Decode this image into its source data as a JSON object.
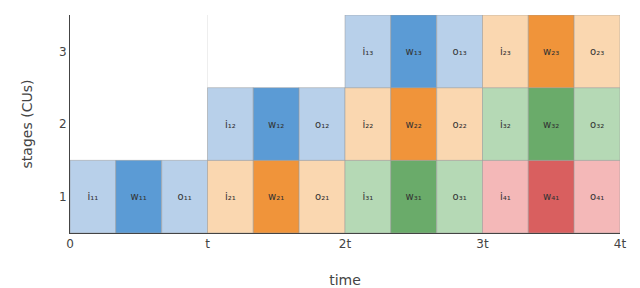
{
  "chart_data": {
    "type": "timeline",
    "orientation": "horizontal",
    "xlabel": "time",
    "ylabel": "stages (CUs)",
    "xlim": [
      0,
      4
    ],
    "xticks": [
      0,
      {
        "value": 1,
        "label": "t"
      },
      {
        "value": 2,
        "label": "2t"
      },
      {
        "value": 3,
        "label": "3t"
      },
      {
        "value": 4,
        "label": "4t"
      }
    ],
    "ylim": [
      0.5,
      3.5
    ],
    "yticks": [
      1,
      2,
      3
    ],
    "grid": true,
    "bars": [
      {
        "stage": 1,
        "start": 0.0,
        "duration": 0.333,
        "label": "i₁₁",
        "color": "#b8d0ea"
      },
      {
        "stage": 1,
        "start": 0.333,
        "duration": 0.333,
        "label": "w₁₁",
        "color": "#5b9bd5"
      },
      {
        "stage": 1,
        "start": 0.667,
        "duration": 0.333,
        "label": "o₁₁",
        "color": "#b8d0ea"
      },
      {
        "stage": 1,
        "start": 1.0,
        "duration": 0.333,
        "label": "i₂₁",
        "color": "#fad7b0"
      },
      {
        "stage": 1,
        "start": 1.333,
        "duration": 0.333,
        "label": "w₂₁",
        "color": "#f0943a"
      },
      {
        "stage": 1,
        "start": 1.667,
        "duration": 0.333,
        "label": "o₂₁",
        "color": "#fad7b0"
      },
      {
        "stage": 1,
        "start": 2.0,
        "duration": 0.333,
        "label": "i₃₁",
        "color": "#b5d9b5"
      },
      {
        "stage": 1,
        "start": 2.333,
        "duration": 0.333,
        "label": "w₃₁",
        "color": "#6aab6a"
      },
      {
        "stage": 1,
        "start": 2.667,
        "duration": 0.333,
        "label": "o₃₁",
        "color": "#b5d9b5"
      },
      {
        "stage": 1,
        "start": 3.0,
        "duration": 0.333,
        "label": "i₄₁",
        "color": "#f4b8b8"
      },
      {
        "stage": 1,
        "start": 3.333,
        "duration": 0.333,
        "label": "w₄₁",
        "color": "#d95f5f"
      },
      {
        "stage": 1,
        "start": 3.667,
        "duration": 0.333,
        "label": "o₄₁",
        "color": "#f4b8b8"
      },
      {
        "stage": 2,
        "start": 1.0,
        "duration": 0.333,
        "label": "i₁₂",
        "color": "#b8d0ea"
      },
      {
        "stage": 2,
        "start": 1.333,
        "duration": 0.333,
        "label": "w₁₂",
        "color": "#5b9bd5"
      },
      {
        "stage": 2,
        "start": 1.667,
        "duration": 0.333,
        "label": "o₁₂",
        "color": "#b8d0ea"
      },
      {
        "stage": 2,
        "start": 2.0,
        "duration": 0.333,
        "label": "i₂₂",
        "color": "#fad7b0"
      },
      {
        "stage": 2,
        "start": 2.333,
        "duration": 0.333,
        "label": "w₂₂",
        "color": "#f0943a"
      },
      {
        "stage": 2,
        "start": 2.667,
        "duration": 0.333,
        "label": "o₂₂",
        "color": "#fad7b0"
      },
      {
        "stage": 2,
        "start": 3.0,
        "duration": 0.333,
        "label": "i₃₂",
        "color": "#b5d9b5"
      },
      {
        "stage": 2,
        "start": 3.333,
        "duration": 0.333,
        "label": "w₃₂",
        "color": "#6aab6a"
      },
      {
        "stage": 2,
        "start": 3.667,
        "duration": 0.333,
        "label": "o₃₂",
        "color": "#b5d9b5"
      },
      {
        "stage": 3,
        "start": 2.0,
        "duration": 0.333,
        "label": "i₁₃",
        "color": "#b8d0ea"
      },
      {
        "stage": 3,
        "start": 2.333,
        "duration": 0.333,
        "label": "w₁₃",
        "color": "#5b9bd5"
      },
      {
        "stage": 3,
        "start": 2.667,
        "duration": 0.333,
        "label": "o₁₃",
        "color": "#b8d0ea"
      },
      {
        "stage": 3,
        "start": 3.0,
        "duration": 0.333,
        "label": "i₂₃",
        "color": "#fad7b0"
      },
      {
        "stage": 3,
        "start": 3.333,
        "duration": 0.333,
        "label": "w₂₃",
        "color": "#f0943a"
      },
      {
        "stage": 3,
        "start": 3.667,
        "duration": 0.333,
        "label": "o₂₃",
        "color": "#fad7b0"
      }
    ]
  }
}
